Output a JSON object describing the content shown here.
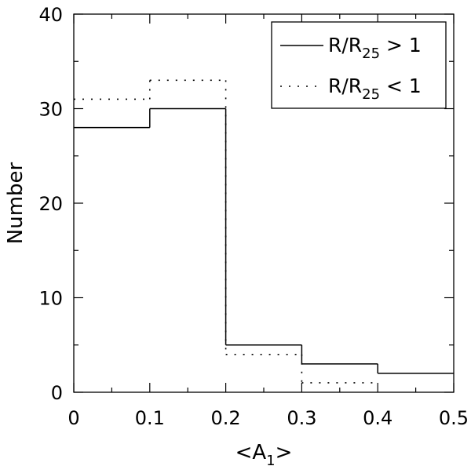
{
  "chart_data": {
    "type": "histogram",
    "xlabel": "<A1>",
    "xlabel_parts": {
      "pre": "<A",
      "sub": "1",
      "post": ">"
    },
    "ylabel": "Number",
    "xlim": [
      0,
      0.5
    ],
    "ylim": [
      0,
      40
    ],
    "xticks": [
      "0",
      "0.1",
      "0.2",
      "0.3",
      "0.4",
      "0.5"
    ],
    "yticks": [
      "0",
      "10",
      "20",
      "30",
      "40"
    ],
    "bin_edges": [
      0,
      0.1,
      0.2,
      0.3,
      0.4,
      0.5
    ],
    "grid": false,
    "legend_position": "top-right",
    "series": [
      {
        "name": "R/R25 > 1",
        "label_parts": {
          "pre": "R/R",
          "sub": "25",
          "post": " > 1"
        },
        "style": "solid",
        "values": [
          28,
          30,
          5,
          3,
          2
        ]
      },
      {
        "name": "R/R25 < 1",
        "label_parts": {
          "pre": "R/R",
          "sub": "25",
          "post": " < 1"
        },
        "style": "dotted",
        "values": [
          31,
          33,
          4,
          1,
          0
        ]
      }
    ]
  }
}
